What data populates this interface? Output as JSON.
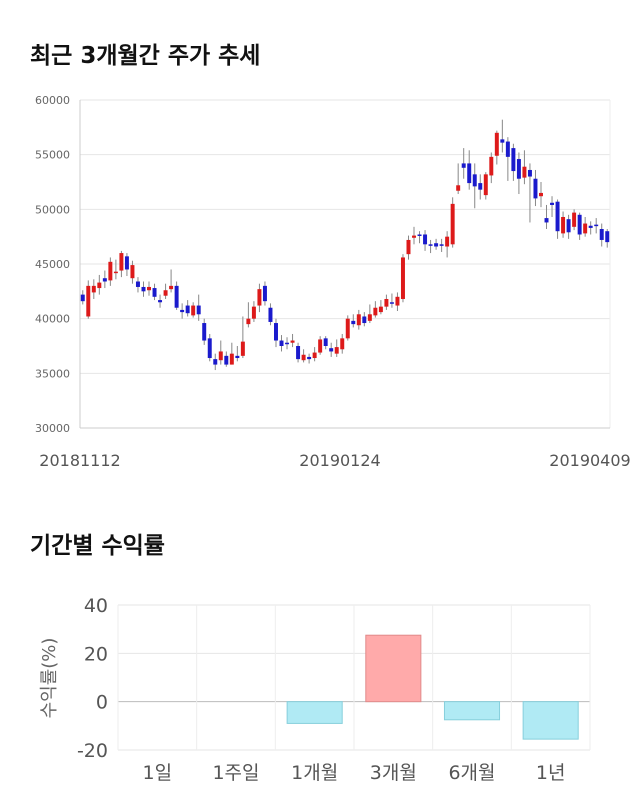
{
  "sections": {
    "price_title": "최근 3개월간 주가 추세",
    "return_title": "기간별 수익률"
  },
  "chart_data": [
    {
      "type": "candlestick",
      "title": "최근 3개월간 주가 추세",
      "ylim": [
        30000,
        60000
      ],
      "y_ticks": [
        "60000",
        "55000",
        "50000",
        "45000",
        "40000",
        "35000",
        "30000"
      ],
      "x_tick_labels": [
        "20181112",
        "20190124",
        "20190409"
      ],
      "grid": true,
      "colors": {
        "up": "#dd1a1a",
        "down": "#1a1acc",
        "wick": "#888888"
      },
      "candles": [
        [
          42200,
          41600,
          42600,
          41300
        ],
        [
          40200,
          43000,
          43500,
          40000
        ],
        [
          42400,
          43000,
          43600,
          41800
        ],
        [
          42800,
          43300,
          44000,
          42200
        ],
        [
          43700,
          43400,
          44400,
          42800
        ],
        [
          43500,
          45200,
          45600,
          43000
        ],
        [
          44200,
          44300,
          45400,
          43600
        ],
        [
          44400,
          46000,
          46200,
          43800
        ],
        [
          45700,
          44500,
          46000,
          43900
        ],
        [
          43700,
          44900,
          45300,
          43200
        ],
        [
          43400,
          42900,
          43800,
          42400
        ],
        [
          42900,
          42500,
          43400,
          42000
        ],
        [
          42600,
          42900,
          43400,
          42100
        ],
        [
          42800,
          42000,
          43200,
          41700
        ],
        [
          41700,
          41500,
          42200,
          41000
        ],
        [
          42100,
          42600,
          43200,
          41800
        ],
        [
          42700,
          43000,
          44500,
          42400
        ],
        [
          43000,
          41000,
          43400,
          40800
        ],
        [
          40800,
          40600,
          41400,
          40000
        ],
        [
          41200,
          40500,
          41700,
          40200
        ],
        [
          40300,
          41200,
          41500,
          40100
        ],
        [
          41200,
          40400,
          42200,
          39800
        ],
        [
          39600,
          38000,
          40000,
          37600
        ],
        [
          38200,
          36400,
          38600,
          36100
        ],
        [
          36300,
          35800,
          36800,
          35300
        ],
        [
          36200,
          37000,
          38000,
          35800
        ],
        [
          36600,
          35800,
          37000,
          35600
        ],
        [
          35800,
          36800,
          37800,
          35800
        ],
        [
          36600,
          36400,
          37500,
          36100
        ],
        [
          36600,
          37900,
          40200,
          36400
        ],
        [
          39500,
          40000,
          41500,
          39200
        ],
        [
          40000,
          41100,
          41600,
          39700
        ],
        [
          41200,
          42700,
          43200,
          40600
        ],
        [
          43000,
          41600,
          43400,
          41200
        ],
        [
          41000,
          39700,
          41400,
          39400
        ],
        [
          39600,
          38000,
          40000,
          37400
        ],
        [
          38000,
          37500,
          38500,
          37000
        ],
        [
          37800,
          37700,
          38300,
          37200
        ],
        [
          37800,
          38000,
          38600,
          37400
        ],
        [
          37500,
          36300,
          37800,
          36000
        ],
        [
          36200,
          36700,
          37200,
          36000
        ],
        [
          36500,
          36300,
          36800,
          35900
        ],
        [
          36400,
          36900,
          37400,
          36100
        ],
        [
          36900,
          38100,
          38400,
          36700
        ],
        [
          38200,
          37500,
          38400,
          37200
        ],
        [
          37300,
          37000,
          37800,
          36500
        ],
        [
          36800,
          37400,
          38100,
          36500
        ],
        [
          37200,
          38200,
          38600,
          36800
        ],
        [
          38200,
          40000,
          40300,
          38000
        ],
        [
          39800,
          39500,
          40400,
          39200
        ],
        [
          39400,
          40400,
          40800,
          39000
        ],
        [
          40200,
          39600,
          40600,
          39300
        ],
        [
          39800,
          40400,
          41300,
          39600
        ],
        [
          40300,
          41000,
          41600,
          40100
        ],
        [
          40600,
          41100,
          41700,
          40400
        ],
        [
          41100,
          41800,
          42200,
          40800
        ],
        [
          41500,
          41400,
          42300,
          41000
        ],
        [
          41200,
          42000,
          42400,
          40700
        ],
        [
          41800,
          45600,
          45900,
          41500
        ],
        [
          45900,
          47200,
          47600,
          45400
        ],
        [
          47400,
          47600,
          48400,
          46800
        ],
        [
          47700,
          47600,
          48000,
          46900
        ],
        [
          47700,
          46800,
          48100,
          46200
        ],
        [
          46800,
          46700,
          47200,
          46000
        ],
        [
          46900,
          46600,
          47300,
          46300
        ],
        [
          46800,
          46700,
          47300,
          46100
        ],
        [
          46600,
          47500,
          48000,
          45600
        ],
        [
          46800,
          50500,
          51100,
          46500
        ],
        [
          51700,
          52200,
          54200,
          51400
        ],
        [
          54200,
          53800,
          55600,
          52800
        ],
        [
          54200,
          52400,
          55400,
          51800
        ],
        [
          53200,
          52100,
          54200,
          50100
        ],
        [
          52400,
          51800,
          53200,
          50900
        ],
        [
          51300,
          53200,
          53400,
          50900
        ],
        [
          53100,
          54800,
          55200,
          52400
        ],
        [
          54900,
          57000,
          57200,
          54100
        ],
        [
          56400,
          56100,
          58200,
          55200
        ],
        [
          56200,
          54800,
          56600,
          52600
        ],
        [
          55600,
          53500,
          56000,
          52600
        ],
        [
          54600,
          52800,
          55200,
          51400
        ],
        [
          52900,
          53900,
          55400,
          52300
        ],
        [
          53600,
          53000,
          54200,
          48800
        ],
        [
          52800,
          51000,
          53600,
          50300
        ],
        [
          51200,
          51500,
          52500,
          50200
        ],
        [
          49200,
          48800,
          50400,
          48200
        ],
        [
          50600,
          50400,
          51200,
          49300
        ],
        [
          50700,
          48000,
          50900,
          47300
        ],
        [
          47800,
          49300,
          49800,
          47400
        ],
        [
          49100,
          47900,
          49500,
          47300
        ],
        [
          48400,
          49700,
          50000,
          48100
        ],
        [
          49500,
          47700,
          49700,
          47200
        ],
        [
          47800,
          48700,
          49300,
          47500
        ],
        [
          48500,
          48300,
          48900,
          47700
        ],
        [
          48600,
          48500,
          49200,
          47800
        ],
        [
          48200,
          47200,
          48700,
          46600
        ],
        [
          48000,
          47000,
          48200,
          46500
        ]
      ]
    },
    {
      "type": "bar",
      "title": "기간별 수익률",
      "ylabel": "수익률(%)",
      "ylim": [
        -20,
        40
      ],
      "y_ticks": [
        "40",
        "20",
        "0",
        "-20"
      ],
      "categories": [
        "1일",
        "1주일",
        "1개월",
        "3개월",
        "6개월",
        "1년"
      ],
      "values": [
        0,
        0,
        -9,
        27.5,
        -7.5,
        -15.5
      ],
      "grid": true,
      "colors": {
        "positive": "#ffaaaa",
        "positive_edge": "#e08a8a",
        "negative": "#b0eaf4",
        "negative_edge": "#86cfdc"
      }
    }
  ]
}
